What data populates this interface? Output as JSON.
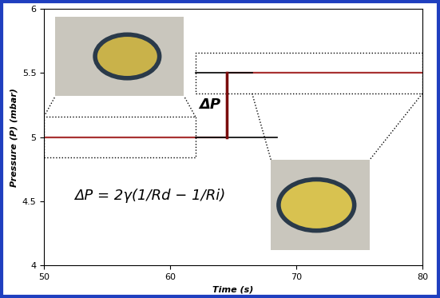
{
  "chart_data": {
    "type": "line",
    "x_label": "Time (s)",
    "y_label": "Pressure (P) (mbar)",
    "x": [
      50,
      64.5,
      64.5,
      80
    ],
    "series": [
      {
        "name": "Pressure",
        "color": "#a83232",
        "values": [
          5.0,
          5.0,
          5.5,
          5.5
        ]
      }
    ],
    "annotations": [
      "ΔP",
      "ΔP = 2γ(1/Rd − 1/Ri)"
    ],
    "xlim": [
      50,
      80
    ],
    "xticks": [
      50,
      60,
      70,
      80
    ],
    "ylim": [
      4,
      6
    ],
    "yticks": [
      4,
      4.5,
      5,
      5.5,
      6
    ],
    "grid": false
  }
}
